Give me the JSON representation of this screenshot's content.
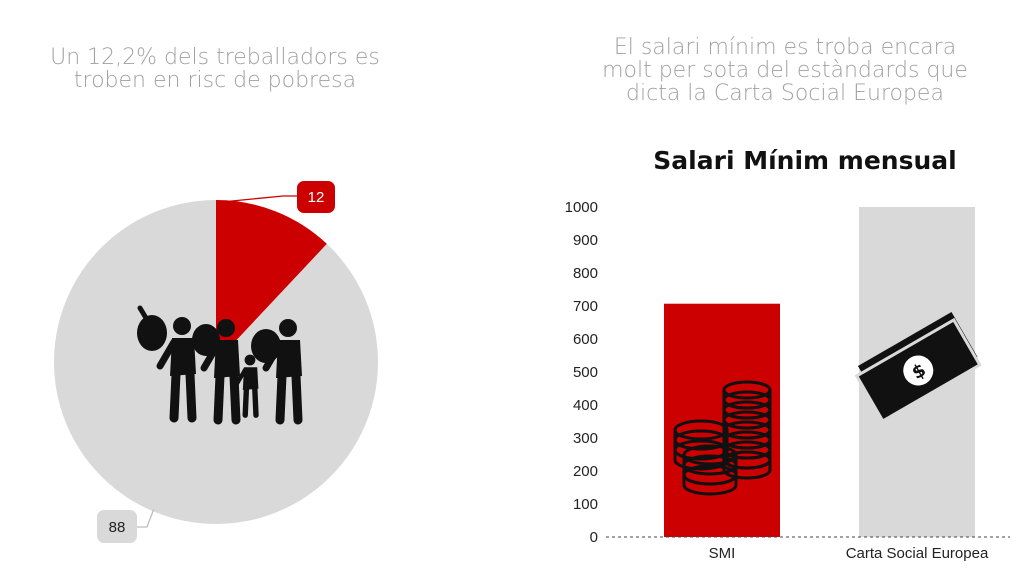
{
  "left_heading": {
    "line1": "Un 12,2% dels treballadors es",
    "line2": "troben en risc de pobresa"
  },
  "right_heading": {
    "line1": "El salari mínim es troba encara",
    "line2": "molt per sota del estàndards que",
    "line3": "dicta la Carta Social Europea"
  },
  "colors": {
    "accent": "#cc0000",
    "neutral": "#d9d9d9",
    "heading": "#a0a0a0"
  },
  "icons": {
    "pie_center": "people-carrying-bags-icon",
    "smi_bar": "coins-stack-icon",
    "csc_bar": "banknote-dollar-icon"
  },
  "chart_data": [
    {
      "type": "pie",
      "labels": [
        "12",
        "88"
      ],
      "values": [
        12,
        88
      ],
      "colors": [
        "#cc0000",
        "#d9d9d9"
      ]
    },
    {
      "type": "bar",
      "title": "Salari Mínim mensual",
      "categories": [
        "SMI",
        "Carta Social Europea"
      ],
      "values": [
        707,
        1000
      ],
      "colors": [
        "#cc0000",
        "#d9d9d9"
      ],
      "ylim": [
        0,
        1000
      ],
      "yticks": [
        "0",
        "100",
        "200",
        "300",
        "400",
        "500",
        "600",
        "700",
        "800",
        "900",
        "1000"
      ],
      "grid": false
    }
  ]
}
